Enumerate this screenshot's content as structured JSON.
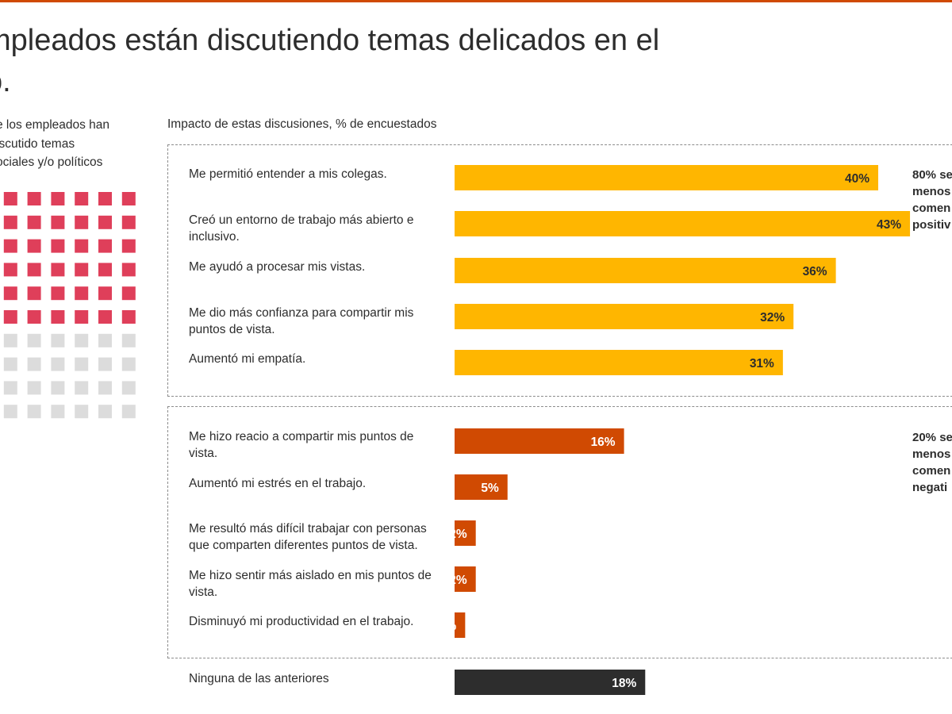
{
  "title": {
    "line1": "mpleados están discutiendo temas delicados en el",
    "line2": "o."
  },
  "left_panel": {
    "lines": [
      "e los empleados han",
      "iscutido temas",
      "ociales y/o políticos"
    ],
    "waffle": {
      "filled": 43,
      "total": 70,
      "colors": {
        "filled": "#df3f5a",
        "empty": "#dcdcdc"
      }
    }
  },
  "chart_data": {
    "type": "bar",
    "orientation": "horizontal",
    "title": "Impacto de estas discusiones, % de encuestados",
    "xlim": [
      0,
      43
    ],
    "groups": [
      {
        "name": "positive",
        "note": [
          "80% se",
          "menos",
          "comen",
          "positiv"
        ],
        "color": "#ffb600",
        "categories": [
          "Me permitió entender a mis colegas.",
          "Creó un entorno de trabajo más abierto e inclusivo.",
          "Me ayudó a procesar mis vistas.",
          "Me dio más confianza para compartir mis puntos de vista.",
          "Aumentó mi empatía."
        ],
        "values": [
          40,
          43,
          36,
          32,
          31
        ],
        "labels": [
          "40%",
          "43%",
          "36%",
          "32%",
          "31%"
        ]
      },
      {
        "name": "negative",
        "note": [
          "20% se",
          "menos",
          "comen",
          "negati"
        ],
        "color": "#d04a02",
        "categories": [
          "Me hizo reacio a compartir mis puntos de vista.",
          "Aumentó mi estrés en el trabajo.",
          "Me resultó más difícil trabajar con personas que comparten diferentes puntos de vista.",
          "Me hizo sentir más aislado en mis puntos de vista.",
          "Disminuyó mi productividad en el trabajo."
        ],
        "values": [
          16,
          5,
          2,
          2,
          1
        ],
        "labels": [
          "16%",
          "5%",
          "2%",
          "2%",
          "1%"
        ]
      },
      {
        "name": "none",
        "color": "#2d2d2d",
        "categories": [
          "Ninguna de las anteriores"
        ],
        "values": [
          18
        ],
        "labels": [
          "18%"
        ]
      }
    ]
  }
}
